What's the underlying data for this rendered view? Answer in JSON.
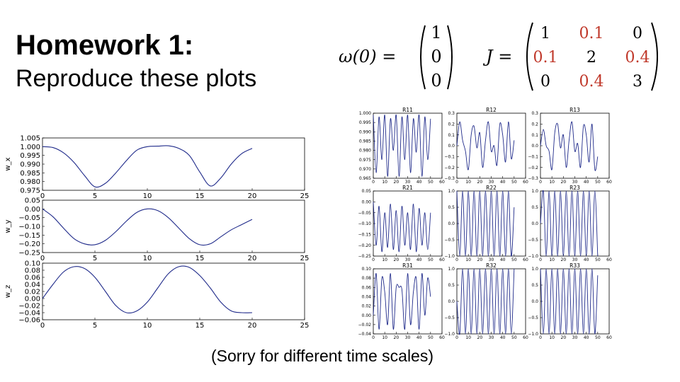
{
  "slide": {
    "title": "Homework 1:",
    "subtitle": "Reproduce these plots",
    "caption": "(Sorry for different time scales)"
  },
  "equations": {
    "omega": {
      "lhs": "ω(0) =",
      "vector": [
        "1",
        "0",
        "0"
      ]
    },
    "inertia": {
      "lhs": "J =",
      "matrix": [
        [
          "1",
          "0.1",
          "0"
        ],
        [
          "0.1",
          "2",
          "0.4"
        ],
        [
          "0",
          "0.4",
          "3"
        ]
      ],
      "highlight_color": "#c0392b"
    }
  },
  "chart_data": [
    {
      "type": "line",
      "id": "w_x",
      "ylabel": "w_x",
      "xlim": [
        0,
        25
      ],
      "ylim": [
        0.975,
        1.005
      ],
      "xticks": [
        "0",
        "5",
        "10",
        "15",
        "20",
        "25"
      ],
      "yticks": [
        "0.975",
        "0.980",
        "0.985",
        "0.990",
        "0.995",
        "1.000",
        "1.005"
      ],
      "color": "#1f2a8a",
      "series": [
        {
          "x": [
            0,
            1,
            2,
            3,
            4,
            5,
            6,
            7,
            8,
            9,
            10,
            11,
            12,
            13,
            14,
            15,
            16,
            17,
            18,
            19,
            20
          ],
          "values": [
            1.0,
            0.9995,
            0.9965,
            0.991,
            0.9835,
            0.977,
            0.979,
            0.985,
            0.992,
            0.998,
            1.0,
            1.0003,
            1.0005,
            0.999,
            0.995,
            0.9855,
            0.9775,
            0.982,
            0.99,
            0.996,
            0.999
          ]
        }
      ]
    },
    {
      "type": "line",
      "id": "w_y",
      "ylabel": "w_y",
      "xlim": [
        0,
        25
      ],
      "ylim": [
        -0.25,
        0.05
      ],
      "xticks": [
        "0",
        "5",
        "10",
        "15",
        "20",
        "25"
      ],
      "yticks": [
        "−0.25",
        "−0.20",
        "−0.15",
        "−0.10",
        "−0.05",
        "0.00",
        "0.05"
      ],
      "color": "#1f2a8a",
      "series": [
        {
          "x": [
            0,
            1,
            2,
            3,
            4,
            5,
            6,
            7,
            8,
            9,
            10,
            11,
            12,
            13,
            14,
            15,
            16,
            17,
            18,
            19,
            20
          ],
          "values": [
            0.0,
            -0.045,
            -0.11,
            -0.17,
            -0.2,
            -0.205,
            -0.18,
            -0.13,
            -0.07,
            -0.02,
            0.0,
            -0.01,
            -0.05,
            -0.11,
            -0.17,
            -0.205,
            -0.2,
            -0.16,
            -0.12,
            -0.09,
            -0.06
          ]
        }
      ]
    },
    {
      "type": "line",
      "id": "w_z",
      "ylabel": "w_z",
      "xlim": [
        0,
        25
      ],
      "ylim": [
        -0.06,
        0.1
      ],
      "xticks": [
        "0",
        "5",
        "10",
        "15",
        "20",
        "25"
      ],
      "yticks": [
        "−0.06",
        "−0.04",
        "−0.02",
        "0.00",
        "0.02",
        "0.04",
        "0.06",
        "0.08",
        "0.10"
      ],
      "color": "#1f2a8a",
      "series": [
        {
          "x": [
            0,
            1,
            2,
            3,
            4,
            5,
            6,
            7,
            8,
            9,
            10,
            11,
            12,
            13,
            14,
            15,
            16,
            17,
            18,
            19,
            20
          ],
          "values": [
            0.0,
            0.04,
            0.075,
            0.09,
            0.085,
            0.06,
            0.02,
            -0.02,
            -0.04,
            -0.035,
            -0.01,
            0.03,
            0.07,
            0.09,
            0.088,
            0.065,
            0.03,
            -0.01,
            -0.035,
            -0.04,
            -0.04
          ]
        }
      ]
    },
    {
      "type": "line",
      "id": "R11",
      "title": "R11",
      "xlim": [
        0,
        60
      ],
      "ylim": [
        0.965,
        1.0
      ],
      "xticks": [
        "0",
        "10",
        "20",
        "30",
        "40",
        "50",
        "60"
      ],
      "yticks": [
        "0.965",
        "0.970",
        "0.975",
        "0.980",
        "0.985",
        "0.990",
        "0.995",
        "1.000"
      ],
      "color": "#1f2a8a",
      "series": [
        {
          "x": [
            0,
            2.5,
            5,
            7.5,
            10,
            12.5,
            15,
            17.5,
            20,
            22.5,
            25,
            27.5,
            30,
            32.5,
            35,
            37.5,
            40,
            42.5,
            45,
            47.5,
            50
          ],
          "values": [
            0.999,
            0.968,
            0.998,
            0.975,
            0.999,
            0.966,
            0.997,
            0.98,
            0.999,
            0.966,
            0.998,
            0.975,
            0.999,
            0.968,
            0.997,
            0.979,
            0.999,
            0.966,
            0.998,
            0.975,
            0.997
          ]
        }
      ]
    },
    {
      "type": "line",
      "id": "R12",
      "title": "R12",
      "xlim": [
        0,
        60
      ],
      "ylim": [
        -0.3,
        0.3
      ],
      "xticks": [
        "0",
        "10",
        "20",
        "30",
        "40",
        "50",
        "60"
      ],
      "yticks": [
        "−0.3",
        "−0.2",
        "−0.1",
        "0.0",
        "0.1",
        "0.2",
        "0.3"
      ],
      "color": "#1f2a8a",
      "series": [
        {
          "x": [
            0,
            2.5,
            5,
            7.5,
            10,
            12.5,
            15,
            17.5,
            20,
            22.5,
            25,
            27.5,
            30,
            32.5,
            35,
            37.5,
            40,
            42.5,
            45,
            47.5,
            50
          ],
          "values": [
            0.0,
            0.22,
            0.05,
            -0.05,
            -0.22,
            0.1,
            0.18,
            -0.02,
            0.12,
            -0.2,
            0.05,
            0.22,
            -0.05,
            0.0,
            -0.18,
            0.2,
            0.1,
            -0.15,
            0.22,
            -0.12,
            0.05
          ]
        }
      ]
    },
    {
      "type": "line",
      "id": "R13",
      "title": "R13",
      "xlim": [
        0,
        60
      ],
      "ylim": [
        -0.3,
        0.3
      ],
      "xticks": [
        "0",
        "10",
        "20",
        "30",
        "40",
        "50",
        "60"
      ],
      "yticks": [
        "−0.3",
        "−0.2",
        "−0.1",
        "0.0",
        "0.1",
        "0.2",
        "0.3"
      ],
      "color": "#1f2a8a",
      "series": [
        {
          "x": [
            0,
            2.5,
            5,
            7.5,
            10,
            12.5,
            15,
            17.5,
            20,
            22.5,
            25,
            27.5,
            30,
            32.5,
            35,
            37.5,
            40,
            42.5,
            45,
            47.5,
            50
          ],
          "values": [
            0.0,
            0.15,
            0.0,
            -0.05,
            -0.22,
            0.12,
            0.2,
            -0.02,
            0.1,
            -0.2,
            0.05,
            0.22,
            -0.05,
            0.02,
            -0.2,
            0.18,
            0.1,
            -0.15,
            0.2,
            -0.22,
            -0.1
          ]
        }
      ]
    },
    {
      "type": "line",
      "id": "R21",
      "title": "R21",
      "xlim": [
        0,
        60
      ],
      "ylim": [
        -0.25,
        0.05
      ],
      "xticks": [
        "0",
        "10",
        "20",
        "30",
        "40",
        "50",
        "60"
      ],
      "yticks": [
        "−0.25",
        "−0.20",
        "−0.15",
        "−0.10",
        "−0.05",
        "0.00",
        "0.05"
      ],
      "color": "#1f2a8a",
      "series": [
        {
          "x": [
            0,
            2.5,
            5,
            7.5,
            10,
            12.5,
            15,
            17.5,
            20,
            22.5,
            25,
            27.5,
            30,
            32.5,
            35,
            37.5,
            40,
            42.5,
            45,
            47.5,
            50
          ],
          "values": [
            0.0,
            -0.2,
            -0.02,
            -0.23,
            -0.05,
            -0.21,
            -0.01,
            -0.22,
            -0.04,
            -0.23,
            -0.02,
            -0.2,
            -0.05,
            -0.22,
            -0.01,
            -0.23,
            -0.03,
            -0.2,
            -0.05,
            -0.22,
            -0.05
          ]
        }
      ]
    },
    {
      "type": "line",
      "id": "R22",
      "title": "R22",
      "xlim": [
        0,
        60
      ],
      "ylim": [
        -1.0,
        1.0
      ],
      "xticks": [
        "0",
        "10",
        "20",
        "30",
        "40",
        "50",
        "60"
      ],
      "yticks": [
        "−1.0",
        "−0.5",
        "0.0",
        "0.5",
        "1.0"
      ],
      "color": "#1f2a8a",
      "series": [
        {
          "x": [
            0,
            2.5,
            5,
            7.5,
            10,
            12.5,
            15,
            17.5,
            20,
            22.5,
            25,
            27.5,
            30,
            32.5,
            35,
            37.5,
            40,
            42.5,
            45,
            47.5,
            50
          ],
          "values": [
            1.0,
            -1.0,
            1.0,
            -1.0,
            1.0,
            -1.0,
            1.0,
            -1.0,
            1.0,
            -1.0,
            1.0,
            -1.0,
            1.0,
            -1.0,
            1.0,
            -1.0,
            1.0,
            -1.0,
            1.0,
            -1.0,
            0.5
          ]
        }
      ]
    },
    {
      "type": "line",
      "id": "R23",
      "title": "R23",
      "xlim": [
        0,
        60
      ],
      "ylim": [
        -1.0,
        1.0
      ],
      "xticks": [
        "0",
        "10",
        "20",
        "30",
        "40",
        "50",
        "60"
      ],
      "yticks": [
        "−1.0",
        "−0.5",
        "0.0",
        "0.5",
        "1.0"
      ],
      "color": "#1f2a8a",
      "series": [
        {
          "x": [
            0,
            2.5,
            5,
            7.5,
            10,
            12.5,
            15,
            17.5,
            20,
            22.5,
            25,
            27.5,
            30,
            32.5,
            35,
            37.5,
            40,
            42.5,
            45,
            47.5,
            50
          ],
          "values": [
            0.0,
            1.0,
            -1.0,
            1.0,
            -1.0,
            1.0,
            -1.0,
            1.0,
            -1.0,
            1.0,
            -1.0,
            1.0,
            -1.0,
            1.0,
            -1.0,
            1.0,
            -1.0,
            1.0,
            -1.0,
            1.0,
            -1.0
          ]
        }
      ]
    },
    {
      "type": "line",
      "id": "R31",
      "title": "R31",
      "xlim": [
        0,
        60
      ],
      "ylim": [
        -0.04,
        0.1
      ],
      "xticks": [
        "0",
        "10",
        "20",
        "30",
        "40",
        "50",
        "60"
      ],
      "yticks": [
        "−0.04",
        "−0.02",
        "0.00",
        "0.02",
        "0.04",
        "0.06",
        "0.08",
        "0.10"
      ],
      "color": "#1f2a8a",
      "series": [
        {
          "x": [
            0,
            2.5,
            5,
            7.5,
            10,
            12.5,
            15,
            17.5,
            20,
            22.5,
            25,
            27.5,
            30,
            32.5,
            35,
            37.5,
            40,
            42.5,
            45,
            47.5,
            50
          ],
          "values": [
            0.0,
            0.09,
            -0.03,
            0.08,
            0.05,
            -0.02,
            0.09,
            -0.03,
            0.06,
            0.06,
            0.055,
            -0.03,
            0.09,
            -0.02,
            0.05,
            0.08,
            -0.03,
            0.09,
            0.0,
            0.08,
            0.04
          ]
        }
      ]
    },
    {
      "type": "line",
      "id": "R32",
      "title": "R32",
      "xlim": [
        0,
        60
      ],
      "ylim": [
        -1.0,
        1.0
      ],
      "xticks": [
        "0",
        "10",
        "20",
        "30",
        "40",
        "50",
        "60"
      ],
      "yticks": [
        "−1.0",
        "−0.5",
        "0.0",
        "0.5",
        "1.0"
      ],
      "color": "#1f2a8a",
      "series": [
        {
          "x": [
            0,
            2.5,
            5,
            7.5,
            10,
            12.5,
            15,
            17.5,
            20,
            22.5,
            25,
            27.5,
            30,
            32.5,
            35,
            37.5,
            40,
            42.5,
            45,
            47.5,
            50
          ],
          "values": [
            0.0,
            -1.0,
            1.0,
            -1.0,
            1.0,
            -1.0,
            1.0,
            -1.0,
            1.0,
            -1.0,
            1.0,
            -1.0,
            1.0,
            -1.0,
            1.0,
            -1.0,
            1.0,
            -1.0,
            1.0,
            -1.0,
            1.0
          ]
        }
      ]
    },
    {
      "type": "line",
      "id": "R33",
      "title": "R33",
      "xlim": [
        0,
        60
      ],
      "ylim": [
        -1.0,
        1.0
      ],
      "xticks": [
        "0",
        "10",
        "20",
        "30",
        "40",
        "50",
        "60"
      ],
      "yticks": [
        "−1.0",
        "−0.5",
        "0.0",
        "0.5",
        "1.0"
      ],
      "color": "#1f2a8a",
      "series": [
        {
          "x": [
            0,
            2.5,
            5,
            7.5,
            10,
            12.5,
            15,
            17.5,
            20,
            22.5,
            25,
            27.5,
            30,
            32.5,
            35,
            37.5,
            40,
            42.5,
            45,
            47.5,
            50
          ],
          "values": [
            1.0,
            -1.0,
            1.0,
            -1.0,
            1.0,
            -1.0,
            1.0,
            -1.0,
            1.0,
            -1.0,
            1.0,
            -1.0,
            1.0,
            -1.0,
            1.0,
            -1.0,
            1.0,
            -1.0,
            1.0,
            -1.0,
            0.8
          ]
        }
      ]
    }
  ]
}
